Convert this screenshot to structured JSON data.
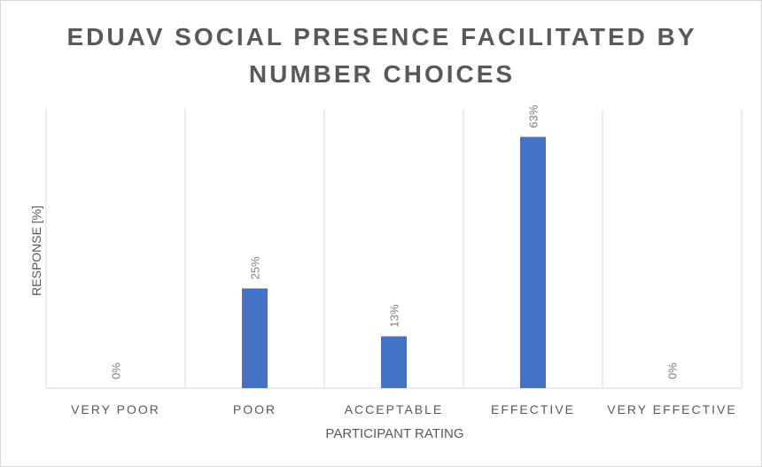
{
  "chart_data": {
    "type": "bar",
    "title": "EDUAV SOCIAL PRESENCE FACILITATED BY NUMBER CHOICES",
    "xlabel": "PARTICIPANT RATING",
    "ylabel": "RESPONSE [%]",
    "categories": [
      "VERY POOR",
      "POOR",
      "ACCEPTABLE",
      "EFFECTIVE",
      "VERY EFFECTIVE"
    ],
    "values": [
      0,
      25,
      13,
      63,
      0
    ],
    "data_labels": [
      "0%",
      "25%",
      "13%",
      "63%",
      "0%"
    ],
    "ylim": [
      0,
      70
    ],
    "bar_color": "#4472c4",
    "grid": "vertical category separators",
    "legend": "none"
  }
}
